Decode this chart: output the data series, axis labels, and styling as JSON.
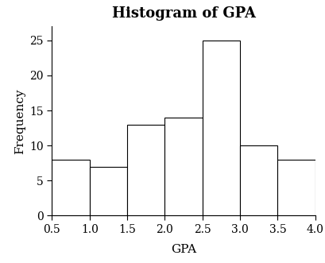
{
  "title": "Histogram of GPA",
  "xlabel": "GPA",
  "ylabel": "Frequency",
  "bin_edges": [
    0.5,
    1.0,
    1.5,
    2.0,
    2.5,
    3.0,
    3.5,
    4.0
  ],
  "frequencies": [
    8,
    7,
    13,
    14,
    25,
    10,
    8
  ],
  "bar_facecolor": "white",
  "bar_edgecolor": "black",
  "ylim": [
    0,
    27
  ],
  "yticks": [
    0,
    5,
    10,
    15,
    20,
    25
  ],
  "xticks": [
    0.5,
    1.0,
    1.5,
    2.0,
    2.5,
    3.0,
    3.5,
    4.0
  ],
  "title_fontsize": 13,
  "label_fontsize": 11,
  "tick_fontsize": 10,
  "background_color": "white",
  "linewidth": 0.8
}
